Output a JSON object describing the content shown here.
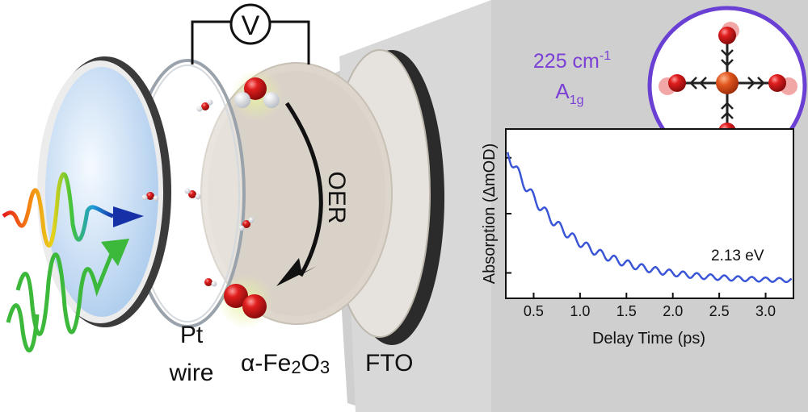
{
  "schematic": {
    "voltmeter_label": "V",
    "oer_label": "OER",
    "pt_label_line1": "Pt",
    "pt_label_line2": "wire",
    "hematite_prefix": "α-Fe",
    "hematite_sub1": "2",
    "hematite_mid": "O",
    "hematite_sub2": "3",
    "fto_label": "FTO"
  },
  "phonon_mode": {
    "frequency": "225 cm",
    "frequency_exp": "-1",
    "symmetry_main": "A",
    "symmetry_sub": "1g"
  },
  "colors": {
    "panel_gray": "#cfcfcf",
    "trace_blue": "#3a55d6",
    "mode_purple": "#7b3fd6",
    "oxygen_red": "#d21f1f",
    "iron_orange": "#e0561e"
  },
  "chart_data": {
    "type": "line",
    "title": "",
    "xlabel": "Delay Time (ps)",
    "ylabel": "Absorption (ΔmOD)",
    "annotation": "2.13 eV",
    "xlim": [
      0.2,
      3.3
    ],
    "ylim": [
      0,
      1
    ],
    "xticks": [
      0.5,
      1.0,
      1.5,
      2.0,
      2.5,
      3.0
    ],
    "xtick_labels": [
      "0.5",
      "1.0",
      "1.5",
      "2.0",
      "2.5",
      "3.0"
    ],
    "yticks_labeled": false,
    "decay_model": {
      "offset": 0.1,
      "amplitude": 0.76,
      "tau_ps": 0.65,
      "osc_amplitude": 0.032,
      "osc_freq_THz": 6.75,
      "osc_damping_ps": 3.0
    },
    "series": [
      {
        "name": "2.13 eV",
        "color": "#3a55d6"
      }
    ]
  }
}
